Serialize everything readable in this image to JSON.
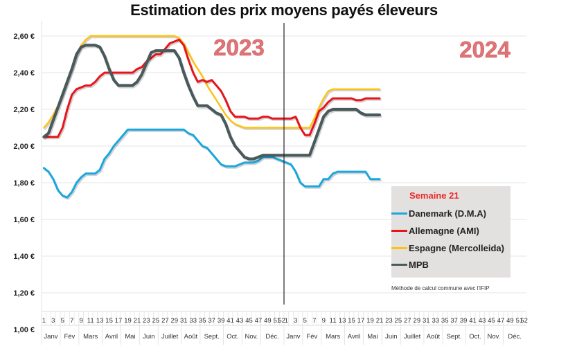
{
  "title": "Estimation des prix moyens payés éleveurs",
  "chart_data": {
    "type": "line",
    "title": "Estimation des prix moyens payés éleveurs",
    "xlabel": "",
    "ylabel": "",
    "ylim": [
      1.0,
      2.7
    ],
    "y_ticks": [
      "1,00 €",
      "1,20 €",
      "1,40 €",
      "1,60 €",
      "1,80 €",
      "2,00 €",
      "2,20 €",
      "2,40 €",
      "2,60 €"
    ],
    "y_tick_values": [
      1.0,
      1.2,
      1.4,
      1.6,
      1.8,
      2.0,
      2.2,
      2.4,
      2.6
    ],
    "grid": true,
    "weeks_per_year": 52,
    "x_tick_labels": [
      "1",
      "3",
      "5",
      "7",
      "9",
      "11",
      "13",
      "15",
      "17",
      "19",
      "21",
      "23",
      "25",
      "27",
      "29",
      "31",
      "33",
      "35",
      "37",
      "39",
      "41",
      "43",
      "45",
      "47",
      "49",
      "51",
      "52"
    ],
    "months": [
      "Janv",
      "Fév",
      "Mars",
      "Avril",
      "Mai",
      "Juin",
      "Juillet",
      "Août",
      "Sept.",
      "Oct.",
      "Nov.",
      "Déc."
    ],
    "month_start_weeks": [
      1,
      5,
      9,
      14,
      18,
      22,
      26,
      31,
      35,
      40,
      44,
      48
    ],
    "years": [
      "2023",
      "2024"
    ],
    "annotations": [
      "2023",
      "2024"
    ],
    "legend_position": "bottom-right",
    "legend_title": "Semaine 21",
    "note": "Méthode de calcul commune avec l'IFIP",
    "series": [
      {
        "name": "Danemark (D.M.A)",
        "color": "#1aa7e0",
        "points": [
          [
            1,
            1.88
          ],
          [
            2,
            1.86
          ],
          [
            3,
            1.82
          ],
          [
            4,
            1.76
          ],
          [
            5,
            1.73
          ],
          [
            6,
            1.72
          ],
          [
            7,
            1.75
          ],
          [
            8,
            1.8
          ],
          [
            9,
            1.83
          ],
          [
            10,
            1.85
          ],
          [
            11,
            1.85
          ],
          [
            12,
            1.85
          ],
          [
            13,
            1.87
          ],
          [
            14,
            1.93
          ],
          [
            15,
            1.96
          ],
          [
            16,
            2.0
          ],
          [
            17,
            2.03
          ],
          [
            18,
            2.06
          ],
          [
            19,
            2.09
          ],
          [
            20,
            2.09
          ],
          [
            21,
            2.09
          ],
          [
            22,
            2.09
          ],
          [
            23,
            2.09
          ],
          [
            24,
            2.09
          ],
          [
            25,
            2.09
          ],
          [
            26,
            2.09
          ],
          [
            27,
            2.09
          ],
          [
            28,
            2.09
          ],
          [
            29,
            2.09
          ],
          [
            30,
            2.09
          ],
          [
            31,
            2.09
          ],
          [
            32,
            2.07
          ],
          [
            33,
            2.06
          ],
          [
            34,
            2.03
          ],
          [
            35,
            2.0
          ],
          [
            36,
            1.99
          ],
          [
            37,
            1.96
          ],
          [
            38,
            1.93
          ],
          [
            39,
            1.9
          ],
          [
            40,
            1.89
          ],
          [
            41,
            1.89
          ],
          [
            42,
            1.89
          ],
          [
            43,
            1.9
          ],
          [
            44,
            1.91
          ],
          [
            45,
            1.91
          ],
          [
            46,
            1.91
          ],
          [
            47,
            1.92
          ],
          [
            48,
            1.94
          ],
          [
            49,
            1.94
          ],
          [
            50,
            1.94
          ],
          [
            51,
            1.93
          ],
          [
            52,
            1.92
          ],
          [
            53,
            1.91
          ],
          [
            54,
            1.9
          ],
          [
            55,
            1.86
          ],
          [
            56,
            1.8
          ],
          [
            57,
            1.78
          ],
          [
            58,
            1.78
          ],
          [
            59,
            1.78
          ],
          [
            60,
            1.78
          ],
          [
            61,
            1.82
          ],
          [
            62,
            1.82
          ],
          [
            63,
            1.85
          ],
          [
            64,
            1.86
          ],
          [
            65,
            1.86
          ],
          [
            66,
            1.86
          ],
          [
            67,
            1.86
          ],
          [
            68,
            1.86
          ],
          [
            69,
            1.86
          ],
          [
            70,
            1.86
          ],
          [
            71,
            1.82
          ],
          [
            72,
            1.82
          ],
          [
            73,
            1.82
          ]
        ]
      },
      {
        "name": "Allemagne (AMI)",
        "color": "#e8141b",
        "points": [
          [
            1,
            2.05
          ],
          [
            2,
            2.05
          ],
          [
            3,
            2.05
          ],
          [
            4,
            2.05
          ],
          [
            5,
            2.1
          ],
          [
            6,
            2.2
          ],
          [
            7,
            2.28
          ],
          [
            8,
            2.31
          ],
          [
            9,
            2.32
          ],
          [
            10,
            2.33
          ],
          [
            11,
            2.33
          ],
          [
            12,
            2.35
          ],
          [
            13,
            2.38
          ],
          [
            14,
            2.4
          ],
          [
            15,
            2.4
          ],
          [
            16,
            2.4
          ],
          [
            17,
            2.4
          ],
          [
            18,
            2.4
          ],
          [
            19,
            2.4
          ],
          [
            20,
            2.4
          ],
          [
            21,
            2.42
          ],
          [
            22,
            2.43
          ],
          [
            23,
            2.46
          ],
          [
            24,
            2.48
          ],
          [
            25,
            2.5
          ],
          [
            26,
            2.5
          ],
          [
            27,
            2.53
          ],
          [
            28,
            2.56
          ],
          [
            29,
            2.57
          ],
          [
            30,
            2.58
          ],
          [
            31,
            2.55
          ],
          [
            32,
            2.47
          ],
          [
            33,
            2.4
          ],
          [
            34,
            2.35
          ],
          [
            35,
            2.36
          ],
          [
            36,
            2.35
          ],
          [
            37,
            2.36
          ],
          [
            38,
            2.33
          ],
          [
            39,
            2.3
          ],
          [
            40,
            2.25
          ],
          [
            41,
            2.19
          ],
          [
            42,
            2.16
          ],
          [
            43,
            2.16
          ],
          [
            44,
            2.16
          ],
          [
            45,
            2.15
          ],
          [
            46,
            2.15
          ],
          [
            47,
            2.15
          ],
          [
            48,
            2.16
          ],
          [
            49,
            2.16
          ],
          [
            50,
            2.15
          ],
          [
            51,
            2.15
          ],
          [
            52,
            2.15
          ],
          [
            53,
            2.15
          ],
          [
            54,
            2.15
          ],
          [
            55,
            2.16
          ],
          [
            56,
            2.1
          ],
          [
            57,
            2.06
          ],
          [
            58,
            2.06
          ],
          [
            59,
            2.12
          ],
          [
            60,
            2.19
          ],
          [
            61,
            2.21
          ],
          [
            62,
            2.24
          ],
          [
            63,
            2.26
          ],
          [
            64,
            2.26
          ],
          [
            65,
            2.26
          ],
          [
            66,
            2.26
          ],
          [
            67,
            2.26
          ],
          [
            68,
            2.25
          ],
          [
            69,
            2.25
          ],
          [
            70,
            2.26
          ],
          [
            71,
            2.26
          ],
          [
            72,
            2.26
          ],
          [
            73,
            2.26
          ]
        ]
      },
      {
        "name": "Espagne (Mercolleida)",
        "color": "#ffc20e",
        "points": [
          [
            1,
            2.1
          ],
          [
            2,
            2.13
          ],
          [
            3,
            2.17
          ],
          [
            4,
            2.22
          ],
          [
            5,
            2.28
          ],
          [
            6,
            2.35
          ],
          [
            7,
            2.42
          ],
          [
            8,
            2.49
          ],
          [
            9,
            2.55
          ],
          [
            10,
            2.58
          ],
          [
            11,
            2.6
          ],
          [
            12,
            2.6
          ],
          [
            13,
            2.6
          ],
          [
            14,
            2.6
          ],
          [
            15,
            2.6
          ],
          [
            16,
            2.6
          ],
          [
            17,
            2.6
          ],
          [
            18,
            2.6
          ],
          [
            19,
            2.6
          ],
          [
            20,
            2.6
          ],
          [
            21,
            2.6
          ],
          [
            22,
            2.6
          ],
          [
            23,
            2.6
          ],
          [
            24,
            2.6
          ],
          [
            25,
            2.6
          ],
          [
            26,
            2.6
          ],
          [
            27,
            2.6
          ],
          [
            28,
            2.6
          ],
          [
            29,
            2.6
          ],
          [
            30,
            2.59
          ],
          [
            31,
            2.56
          ],
          [
            32,
            2.51
          ],
          [
            33,
            2.46
          ],
          [
            34,
            2.42
          ],
          [
            35,
            2.38
          ],
          [
            36,
            2.33
          ],
          [
            37,
            2.29
          ],
          [
            38,
            2.25
          ],
          [
            39,
            2.21
          ],
          [
            40,
            2.17
          ],
          [
            41,
            2.14
          ],
          [
            42,
            2.12
          ],
          [
            43,
            2.11
          ],
          [
            44,
            2.1
          ],
          [
            45,
            2.1
          ],
          [
            46,
            2.1
          ],
          [
            47,
            2.1
          ],
          [
            48,
            2.1
          ],
          [
            49,
            2.1
          ],
          [
            50,
            2.1
          ],
          [
            51,
            2.1
          ],
          [
            52,
            2.1
          ],
          [
            53,
            2.1
          ],
          [
            54,
            2.1
          ],
          [
            55,
            2.1
          ],
          [
            56,
            2.1
          ],
          [
            57,
            2.1
          ],
          [
            58,
            2.1
          ],
          [
            59,
            2.15
          ],
          [
            60,
            2.21
          ],
          [
            61,
            2.26
          ],
          [
            62,
            2.3
          ],
          [
            63,
            2.31
          ],
          [
            64,
            2.31
          ],
          [
            65,
            2.31
          ],
          [
            66,
            2.31
          ],
          [
            67,
            2.31
          ],
          [
            68,
            2.31
          ],
          [
            69,
            2.31
          ],
          [
            70,
            2.31
          ],
          [
            71,
            2.31
          ],
          [
            72,
            2.31
          ],
          [
            73,
            2.31
          ]
        ]
      },
      {
        "name": "MPB",
        "color": "#4a5a5c",
        "points": [
          [
            1,
            2.05
          ],
          [
            2,
            2.07
          ],
          [
            3,
            2.14
          ],
          [
            4,
            2.21
          ],
          [
            5,
            2.28
          ],
          [
            6,
            2.35
          ],
          [
            7,
            2.42
          ],
          [
            8,
            2.5
          ],
          [
            9,
            2.54
          ],
          [
            10,
            2.55
          ],
          [
            11,
            2.55
          ],
          [
            12,
            2.55
          ],
          [
            13,
            2.54
          ],
          [
            14,
            2.49
          ],
          [
            15,
            2.42
          ],
          [
            16,
            2.36
          ],
          [
            17,
            2.33
          ],
          [
            18,
            2.33
          ],
          [
            19,
            2.33
          ],
          [
            20,
            2.33
          ],
          [
            21,
            2.35
          ],
          [
            22,
            2.39
          ],
          [
            23,
            2.45
          ],
          [
            24,
            2.51
          ],
          [
            25,
            2.52
          ],
          [
            26,
            2.52
          ],
          [
            27,
            2.52
          ],
          [
            28,
            2.52
          ],
          [
            29,
            2.52
          ],
          [
            30,
            2.48
          ],
          [
            31,
            2.4
          ],
          [
            32,
            2.33
          ],
          [
            33,
            2.27
          ],
          [
            34,
            2.22
          ],
          [
            35,
            2.22
          ],
          [
            36,
            2.22
          ],
          [
            37,
            2.2
          ],
          [
            38,
            2.18
          ],
          [
            39,
            2.17
          ],
          [
            40,
            2.12
          ],
          [
            41,
            2.05
          ],
          [
            42,
            2.0
          ],
          [
            43,
            1.97
          ],
          [
            44,
            1.94
          ],
          [
            45,
            1.93
          ],
          [
            46,
            1.93
          ],
          [
            47,
            1.94
          ],
          [
            48,
            1.95
          ],
          [
            49,
            1.95
          ],
          [
            50,
            1.95
          ],
          [
            51,
            1.95
          ],
          [
            52,
            1.95
          ],
          [
            53,
            1.95
          ],
          [
            54,
            1.95
          ],
          [
            55,
            1.95
          ],
          [
            56,
            1.95
          ],
          [
            57,
            1.95
          ],
          [
            58,
            1.95
          ],
          [
            59,
            2.02
          ],
          [
            60,
            2.09
          ],
          [
            61,
            2.16
          ],
          [
            62,
            2.19
          ],
          [
            63,
            2.2
          ],
          [
            64,
            2.2
          ],
          [
            65,
            2.2
          ],
          [
            66,
            2.2
          ],
          [
            67,
            2.2
          ],
          [
            68,
            2.2
          ],
          [
            69,
            2.18
          ],
          [
            70,
            2.17
          ],
          [
            71,
            2.17
          ],
          [
            72,
            2.17
          ],
          [
            73,
            2.17
          ]
        ]
      }
    ]
  }
}
